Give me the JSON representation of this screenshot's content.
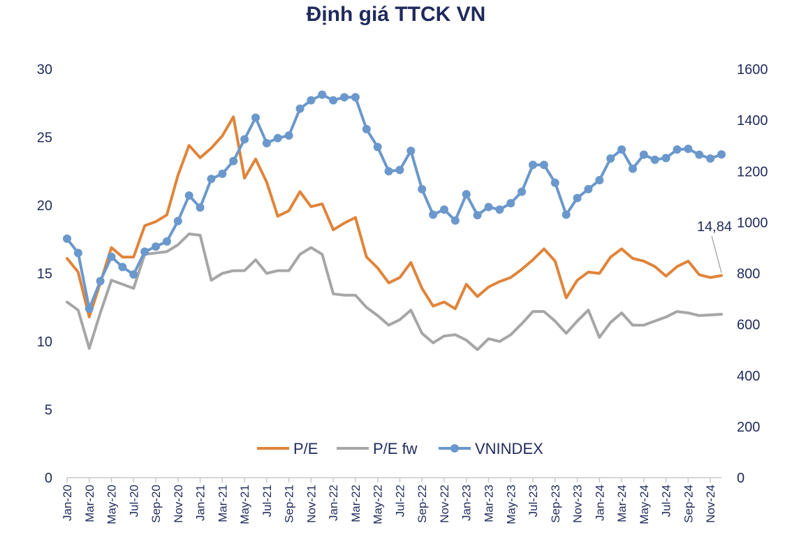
{
  "chart_data": {
    "type": "line",
    "title": "Định giá TTCK VN",
    "x": [
      "Jan-20",
      "Feb-20",
      "Mar-20",
      "Apr-20",
      "May-20",
      "Jun-20",
      "Jul-20",
      "Aug-20",
      "Sep-20",
      "Oct-20",
      "Nov-20",
      "Dec-20",
      "Jan-21",
      "Feb-21",
      "Mar-21",
      "Apr-21",
      "May-21",
      "Jun-21",
      "Jul-21",
      "Aug-21",
      "Sep-21",
      "Oct-21",
      "Nov-21",
      "Dec-21",
      "Jan-22",
      "Feb-22",
      "Mar-22",
      "Apr-22",
      "May-22",
      "Jun-22",
      "Jul-22",
      "Aug-22",
      "Sep-22",
      "Oct-22",
      "Nov-22",
      "Dec-22",
      "Jan-23",
      "Feb-23",
      "Mar-23",
      "Apr-23",
      "May-23",
      "Jun-23",
      "Jul-23",
      "Aug-23",
      "Sep-23",
      "Oct-23",
      "Nov-23",
      "Dec-23",
      "Jan-24",
      "Feb-24",
      "Mar-24",
      "Apr-24",
      "May-24",
      "Jun-24",
      "Jul-24",
      "Aug-24",
      "Sep-24",
      "Oct-24",
      "Nov-24",
      "Dec-24"
    ],
    "x_tick_labels": [
      "Jan-20",
      "Mar-20",
      "May-20",
      "Jul-20",
      "Sep-20",
      "Nov-20",
      "Jan-21",
      "Mar-21",
      "May-21",
      "Jul-21",
      "Sep-21",
      "Nov-21",
      "Jan-22",
      "Mar-22",
      "May-22",
      "Jul-22",
      "Sep-22",
      "Nov-22",
      "Jan-23",
      "Mar-23",
      "May-23",
      "Jul-23",
      "Sep-23",
      "Nov-23",
      "Jan-24",
      "Mar-24",
      "May-24",
      "Jul-24",
      "Sep-24",
      "Nov-24"
    ],
    "y_left": {
      "ylim": [
        0,
        30
      ],
      "ticks": [
        0,
        5,
        10,
        15,
        20,
        25,
        30
      ]
    },
    "y_right": {
      "ylim": [
        0,
        1600
      ],
      "ticks": [
        0,
        200,
        400,
        600,
        800,
        1000,
        1200,
        1400,
        1600
      ]
    },
    "grid": false,
    "legend_placement": "bottom-center",
    "series": [
      {
        "name": "P/E",
        "axis": "left",
        "color": "#e0843a",
        "marker": false,
        "values": [
          16.1,
          15.1,
          11.8,
          14.3,
          16.9,
          16.2,
          16.2,
          18.5,
          18.8,
          19.3,
          22.2,
          24.4,
          23.5,
          24.2,
          25.1,
          26.5,
          22.0,
          23.4,
          21.7,
          19.2,
          19.6,
          21.0,
          19.9,
          20.1,
          18.2,
          18.7,
          19.1,
          16.2,
          15.4,
          14.3,
          14.7,
          15.8,
          13.9,
          12.6,
          12.9,
          12.4,
          14.2,
          13.3,
          14.0,
          14.4,
          14.7,
          15.3,
          16.0,
          16.8,
          15.9,
          13.2,
          14.5,
          15.1,
          15.0,
          16.2,
          16.8,
          16.1,
          15.9,
          15.5,
          14.8,
          15.5,
          15.9,
          14.9,
          14.7,
          14.84
        ]
      },
      {
        "name": "P/E fw",
        "axis": "left",
        "color": "#a6a6a6",
        "marker": false,
        "values": [
          12.9,
          12.3,
          9.5,
          12.1,
          14.5,
          14.2,
          13.9,
          16.4,
          16.5,
          16.6,
          17.1,
          17.9,
          17.8,
          14.5,
          15.0,
          15.2,
          15.2,
          16.0,
          15.0,
          15.2,
          15.2,
          16.4,
          16.9,
          16.4,
          13.5,
          13.4,
          13.4,
          12.5,
          11.9,
          11.2,
          11.6,
          12.3,
          10.6,
          9.9,
          10.4,
          10.5,
          10.1,
          9.4,
          10.2,
          10.0,
          10.5,
          11.3,
          12.2,
          12.2,
          11.5,
          10.6,
          11.5,
          12.3,
          10.3,
          11.4,
          12.1,
          11.2,
          11.2,
          11.5,
          11.8,
          12.2,
          12.1,
          11.9,
          11.95,
          12.0
        ]
      },
      {
        "name": "VNINDEX",
        "axis": "right",
        "color": "#6b98cc",
        "marker": true,
        "values": [
          936,
          880,
          662,
          770,
          865,
          825,
          796,
          885,
          905,
          925,
          1005,
          1105,
          1058,
          1170,
          1190,
          1240,
          1325,
          1410,
          1310,
          1330,
          1340,
          1445,
          1478,
          1500,
          1478,
          1490,
          1490,
          1365,
          1295,
          1200,
          1205,
          1280,
          1130,
          1030,
          1050,
          1007,
          1110,
          1028,
          1060,
          1050,
          1075,
          1120,
          1225,
          1225,
          1155,
          1030,
          1095,
          1130,
          1165,
          1250,
          1285,
          1210,
          1265,
          1245,
          1252,
          1285,
          1288,
          1265,
          1250,
          1266
        ]
      }
    ],
    "annotations": [
      {
        "text": "14,84",
        "series": "P/E",
        "x": "Dec-24"
      }
    ]
  },
  "colors": {
    "text": "#1f2a5c",
    "axis": "#c8c8c8"
  }
}
